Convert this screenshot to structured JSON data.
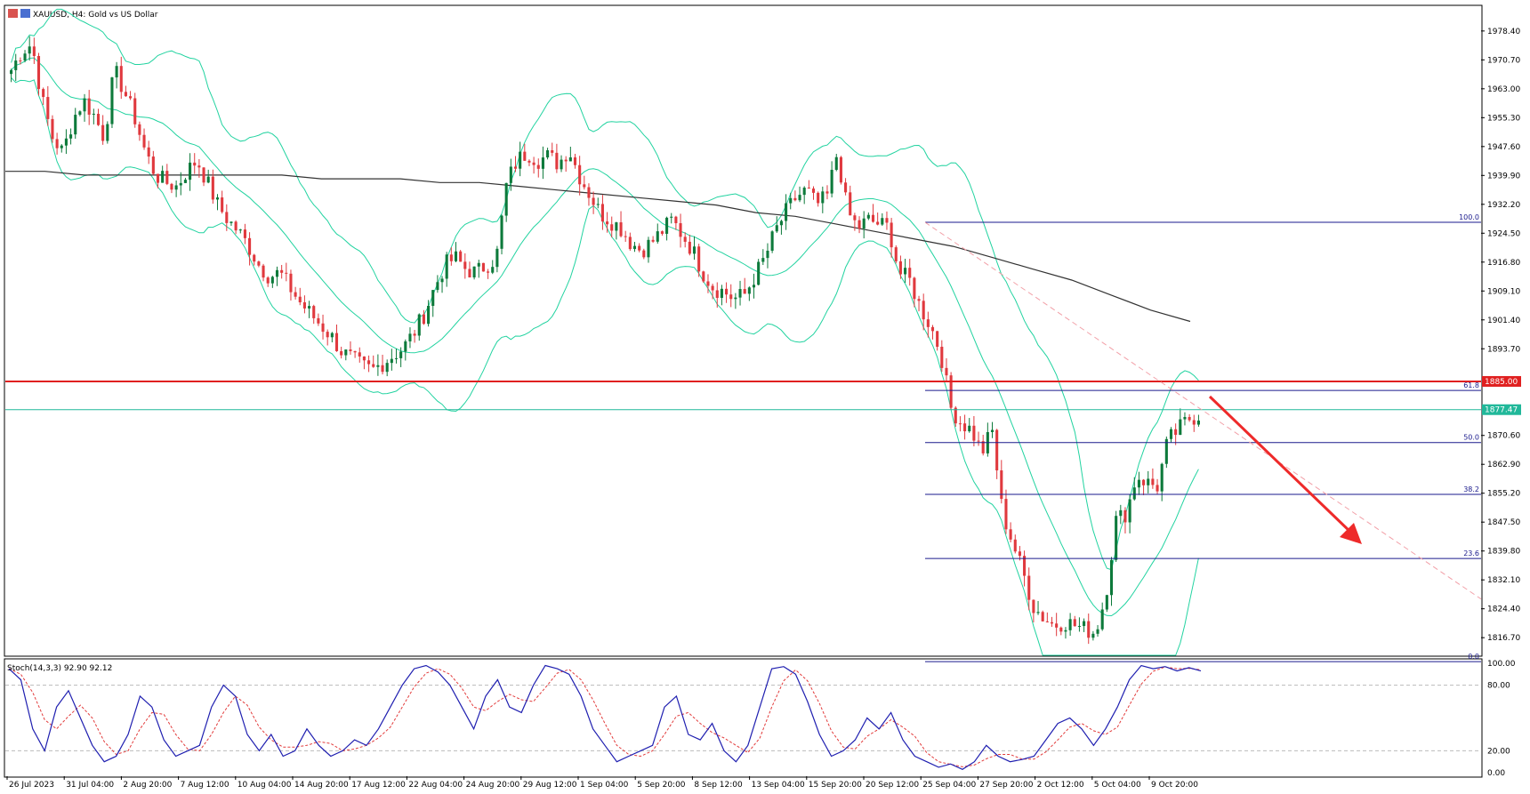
{
  "header": {
    "title": "XAUUSD, H4:  Gold vs US Dollar"
  },
  "stoch_label": "Stoch(14,3,3) 92.90 92.12",
  "colors": {
    "bull": "#0d7a3b",
    "bear": "#e0393e",
    "bollinger": "#22d3a0",
    "ma": "#333333",
    "resistance": "#e02020",
    "current": "#21b89a",
    "fib": "#1a1a8c",
    "arrow": "#ee2a2a",
    "stoch_main": "#1f1fb0",
    "stoch_signal": "#e23b3b"
  },
  "chart_data": [
    {
      "type": "candlestick",
      "symbol": "XAUUSD",
      "timeframe": "H4",
      "ylim": [
        1812,
        1985
      ],
      "y_ticks": [
        "1978.40",
        "1970.70",
        "1963.00",
        "1955.30",
        "1947.60",
        "1939.90",
        "1932.20",
        "1924.50",
        "1916.80",
        "1909.10",
        "1901.40",
        "1893.70",
        "1870.60",
        "1862.90",
        "1855.20",
        "1847.50",
        "1839.80",
        "1832.10",
        "1824.40",
        "1816.70"
      ],
      "x_ticks": [
        "26 Jul 2023",
        "31 Jul 04:00",
        "2 Aug 20:00",
        "7 Aug 12:00",
        "10 Aug 04:00",
        "14 Aug 20:00",
        "17 Aug 12:00",
        "22 Aug 04:00",
        "24 Aug 20:00",
        "29 Aug 12:00",
        "1 Sep 04:00",
        "5 Sep 20:00",
        "8 Sep 12:00",
        "13 Sep 04:00",
        "15 Sep 20:00",
        "20 Sep 12:00",
        "25 Sep 04:00",
        "27 Sep 20:00",
        "2 Oct 12:00",
        "5 Oct 04:00",
        "9 Oct 20:00"
      ],
      "close_path": [
        1968,
        1973,
        1975,
        1960,
        1950,
        1946,
        1955,
        1960,
        1956,
        1950,
        1968,
        1962,
        1955,
        1946,
        1940,
        1938,
        1937,
        1941,
        1944,
        1938,
        1932,
        1928,
        1925,
        1921,
        1916,
        1913,
        1914,
        1910,
        1906,
        1903,
        1900,
        1897,
        1893,
        1891,
        1889,
        1888,
        1890,
        1892,
        1894,
        1898,
        1903,
        1910,
        1916,
        1918,
        1915,
        1914,
        1916,
        1918,
        1938,
        1944,
        1946,
        1944,
        1945,
        1943,
        1947,
        1940,
        1935,
        1930,
        1928,
        1926,
        1922,
        1920,
        1922,
        1925,
        1928,
        1924,
        1920,
        1914,
        1910,
        1909,
        1907,
        1908,
        1913,
        1918,
        1925,
        1930,
        1934,
        1936,
        1932,
        1934,
        1946,
        1930,
        1926,
        1928,
        1927,
        1926,
        1914,
        1912,
        1905,
        1900,
        1893,
        1878,
        1874,
        1872,
        1866,
        1872,
        1850,
        1842,
        1834,
        1825,
        1822,
        1820,
        1821,
        1820,
        1819,
        1818,
        1828,
        1848,
        1850,
        1860,
        1858,
        1857,
        1869,
        1872,
        1875,
        1876
      ],
      "resistance": {
        "value": 1885.0,
        "label": "1885.00"
      },
      "current_price": {
        "value": 1877.47,
        "label": "1877.47"
      },
      "fibonacci": [
        {
          "level": "100.0",
          "price": 1927.4
        },
        {
          "level": "61.8",
          "price": 1882.6
        },
        {
          "level": "50.0",
          "price": 1868.7
        },
        {
          "level": "38.2",
          "price": 1854.9
        },
        {
          "level": "23.6",
          "price": 1837.8
        },
        {
          "level": "0.0",
          "price": 1810.3
        }
      ],
      "ma_path": [
        1941,
        1941,
        1940,
        1940,
        1940,
        1940,
        1940,
        1940,
        1939,
        1939,
        1939,
        1938,
        1938,
        1937,
        1936,
        1935,
        1934,
        1933,
        1932,
        1930,
        1929,
        1927,
        1925,
        1923,
        1921,
        1918,
        1915,
        1912,
        1908,
        1904,
        1901
      ],
      "annotation": "projected decline arrow"
    },
    {
      "type": "line",
      "name": "Stoch(14,3,3)",
      "ylim": [
        0,
        100
      ],
      "levels": [
        20,
        80
      ],
      "y_ticks": [
        "100.00",
        "80.00",
        "20.00",
        "0.00"
      ],
      "current": {
        "main": 92.9,
        "signal": 92.12
      },
      "main": [
        95,
        85,
        40,
        20,
        60,
        75,
        50,
        25,
        10,
        15,
        35,
        70,
        60,
        30,
        15,
        20,
        25,
        60,
        80,
        70,
        35,
        20,
        35,
        15,
        20,
        40,
        25,
        15,
        20,
        30,
        25,
        40,
        60,
        80,
        95,
        98,
        92,
        80,
        60,
        40,
        70,
        85,
        60,
        55,
        80,
        98,
        95,
        90,
        70,
        40,
        25,
        10,
        15,
        20,
        25,
        60,
        70,
        35,
        30,
        45,
        20,
        10,
        25,
        60,
        95,
        97,
        90,
        65,
        35,
        15,
        20,
        30,
        50,
        40,
        55,
        30,
        15,
        10,
        5,
        8,
        3,
        10,
        25,
        15,
        10,
        12,
        15,
        30,
        45,
        50,
        40,
        25,
        40,
        60,
        85,
        98,
        95,
        97,
        93,
        96,
        93
      ]
    }
  ]
}
